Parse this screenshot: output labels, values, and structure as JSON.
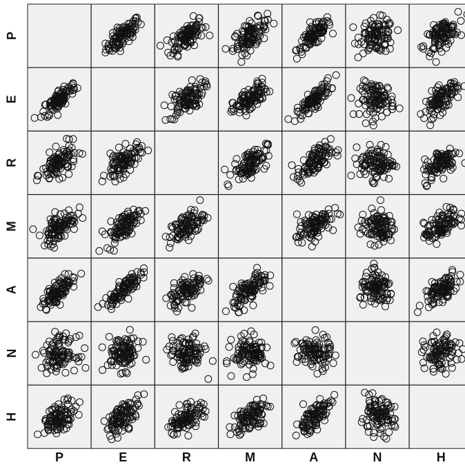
{
  "chart_data": {
    "type": "scatter",
    "chart_kind": "scatterplot-matrix",
    "variables": [
      "P",
      "E",
      "R",
      "M",
      "A",
      "N",
      "H"
    ],
    "grid": false,
    "diagonal": "empty",
    "marker": "open-circle",
    "colors": {
      "panel_background": "#f0f0f0",
      "marker": "#111111",
      "border": "#1a1a1a"
    },
    "n_points_per_panel": 100,
    "correlation_matrix": [
      [
        1.0,
        0.8,
        0.6,
        0.6,
        0.8,
        0.0,
        0.6
      ],
      [
        0.8,
        1.0,
        0.6,
        0.7,
        0.85,
        0.0,
        0.65
      ],
      [
        0.6,
        0.6,
        1.0,
        0.6,
        0.6,
        0.0,
        0.6
      ],
      [
        0.6,
        0.7,
        0.6,
        1.0,
        0.65,
        0.0,
        0.6
      ],
      [
        0.8,
        0.85,
        0.6,
        0.65,
        1.0,
        0.0,
        0.65
      ],
      [
        0.0,
        0.0,
        0.0,
        0.0,
        0.0,
        1.0,
        0.0
      ],
      [
        0.6,
        0.65,
        0.6,
        0.6,
        0.65,
        0.0,
        1.0
      ]
    ]
  }
}
